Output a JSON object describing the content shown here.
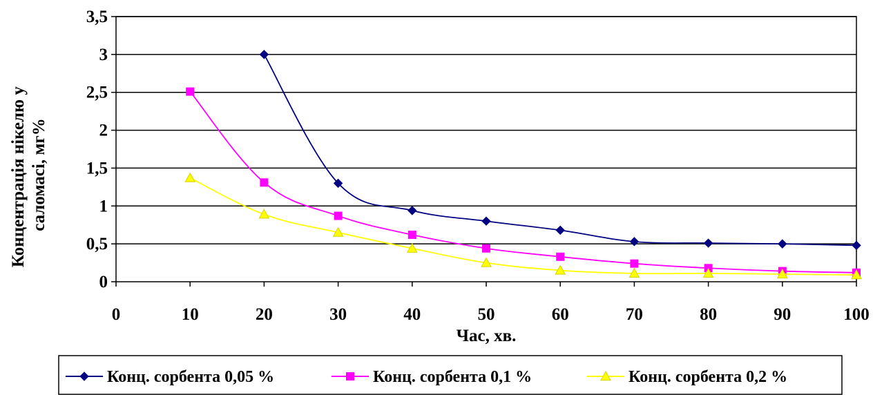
{
  "chart_data": {
    "type": "line",
    "xlabel": "Час, хв.",
    "ylabel_lines": [
      "Концентрація нікелю у",
      "саломасі, мг%"
    ],
    "xlim": [
      0,
      100
    ],
    "ylim": [
      0,
      3.5
    ],
    "x_ticks": [
      "0",
      "10",
      "20",
      "30",
      "40",
      "50",
      "60",
      "70",
      "80",
      "90",
      "100"
    ],
    "y_ticks": [
      "0",
      "0,5",
      "1",
      "1,5",
      "2",
      "2,5",
      "3",
      "3,5"
    ],
    "grid": "horizontal",
    "legend_position": "bottom",
    "series": [
      {
        "name": "Конц. сорбента 0,05 %",
        "marker": "diamond",
        "color": "#000080",
        "x": [
          20,
          30,
          40,
          50,
          60,
          70,
          80,
          90,
          100
        ],
        "y": [
          3.0,
          1.3,
          0.94,
          0.8,
          0.68,
          0.53,
          0.51,
          0.5,
          0.48
        ]
      },
      {
        "name": "Конц. сорбента 0,1 %",
        "marker": "square",
        "color": "#ff00ff",
        "x": [
          10,
          20,
          30,
          40,
          50,
          60,
          70,
          80,
          90,
          100
        ],
        "y": [
          2.51,
          1.31,
          0.87,
          0.62,
          0.44,
          0.33,
          0.24,
          0.18,
          0.14,
          0.12
        ]
      },
      {
        "name": "Конц. сорбента 0,2 %",
        "marker": "triangle",
        "color": "#ffff00",
        "x": [
          10,
          20,
          30,
          40,
          50,
          60,
          70,
          80,
          90,
          100
        ],
        "y": [
          1.37,
          0.89,
          0.65,
          0.44,
          0.25,
          0.15,
          0.11,
          0.11,
          0.1,
          0.09
        ]
      }
    ]
  }
}
